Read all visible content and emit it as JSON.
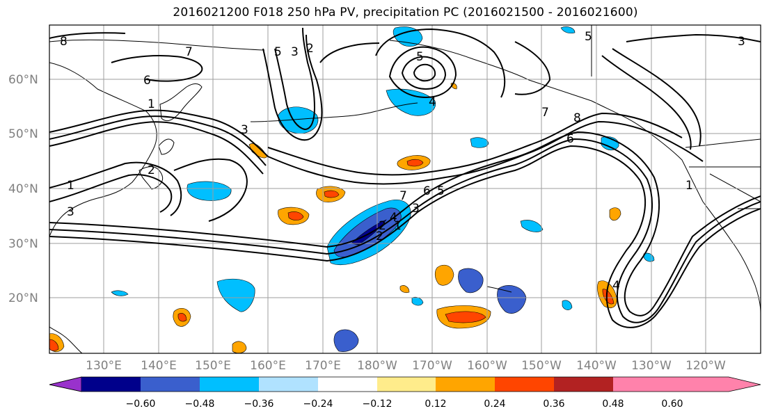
{
  "title": "2016021200 F018 250 hPa PV, precipitation PC (2016021500 - 2016021600)",
  "map": {
    "lat_labels": [
      "60°N",
      "50°N",
      "40°N",
      "30°N",
      "20°N"
    ],
    "lon_labels": [
      "130°E",
      "140°E",
      "150°E",
      "160°E",
      "170°E",
      "180°W",
      "170°W",
      "160°W",
      "150°W",
      "140°W",
      "130°W",
      "120°W"
    ],
    "contour_labels": [
      "8",
      "7",
      "6",
      "5",
      "3",
      "2",
      "5",
      "4",
      "7",
      "8",
      "6",
      "5",
      "3",
      "1",
      "2",
      "3",
      "1",
      "3",
      "5",
      "7",
      "6",
      "4",
      "2",
      "1",
      "3",
      "2",
      "1",
      "4"
    ]
  },
  "colorbar": {
    "ticks": [
      "−0.60",
      "−0.48",
      "−0.36",
      "−0.24",
      "−0.12",
      "0.12",
      "0.24",
      "0.36",
      "0.48",
      "0.60"
    ],
    "colors": [
      "#9932cc",
      "#00008b",
      "#3a5fcd",
      "#00bfff",
      "#b0e2ff",
      "#ffffff",
      "#ffec8b",
      "#ffa500",
      "#ff4500",
      "#b22222",
      "#ff82ab"
    ]
  }
}
